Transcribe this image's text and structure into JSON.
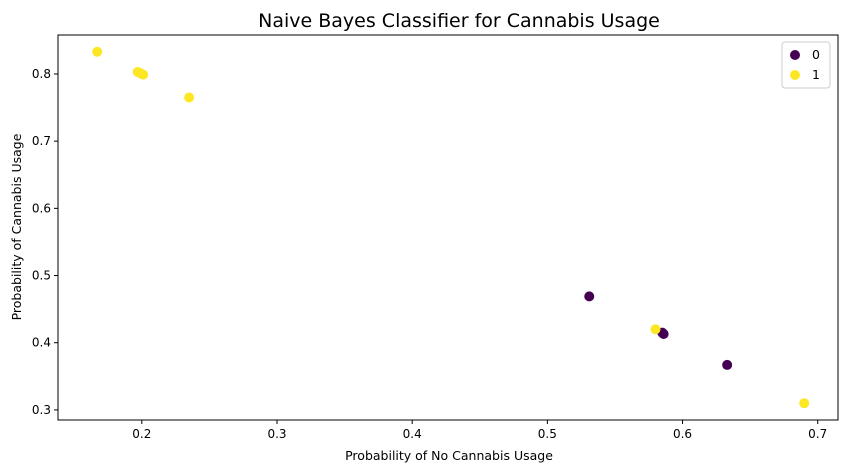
{
  "chart_data": {
    "type": "scatter",
    "title": "Naive Bayes Classifier for Cannabis Usage",
    "xlabel": "Probability of No Cannabis Usage",
    "ylabel": "Probability of Cannabis Usage",
    "xlim": [
      0.138,
      0.715
    ],
    "ylim": [
      0.285,
      0.858
    ],
    "xticks": [
      0.2,
      0.3,
      0.4,
      0.5,
      0.6,
      0.7
    ],
    "xtick_labels": [
      "0.2",
      "0.3",
      "0.4",
      "0.5",
      "0.6",
      "0.7"
    ],
    "yticks": [
      0.3,
      0.4,
      0.5,
      0.6,
      0.7,
      0.8
    ],
    "ytick_labels": [
      "0.3",
      "0.4",
      "0.5",
      "0.6",
      "0.7",
      "0.8"
    ],
    "grid": false,
    "legend_position": "top-right",
    "series": [
      {
        "name": "0",
        "color": "#440154",
        "points": [
          {
            "x": 0.531,
            "y": 0.469
          },
          {
            "x": 0.585,
            "y": 0.415
          },
          {
            "x": 0.586,
            "y": 0.413
          },
          {
            "x": 0.633,
            "y": 0.367
          }
        ]
      },
      {
        "name": "1",
        "color": "#fde725",
        "points": [
          {
            "x": 0.167,
            "y": 0.833
          },
          {
            "x": 0.197,
            "y": 0.803
          },
          {
            "x": 0.199,
            "y": 0.801
          },
          {
            "x": 0.201,
            "y": 0.799
          },
          {
            "x": 0.235,
            "y": 0.765
          },
          {
            "x": 0.58,
            "y": 0.42
          },
          {
            "x": 0.69,
            "y": 0.31
          }
        ]
      }
    ]
  }
}
